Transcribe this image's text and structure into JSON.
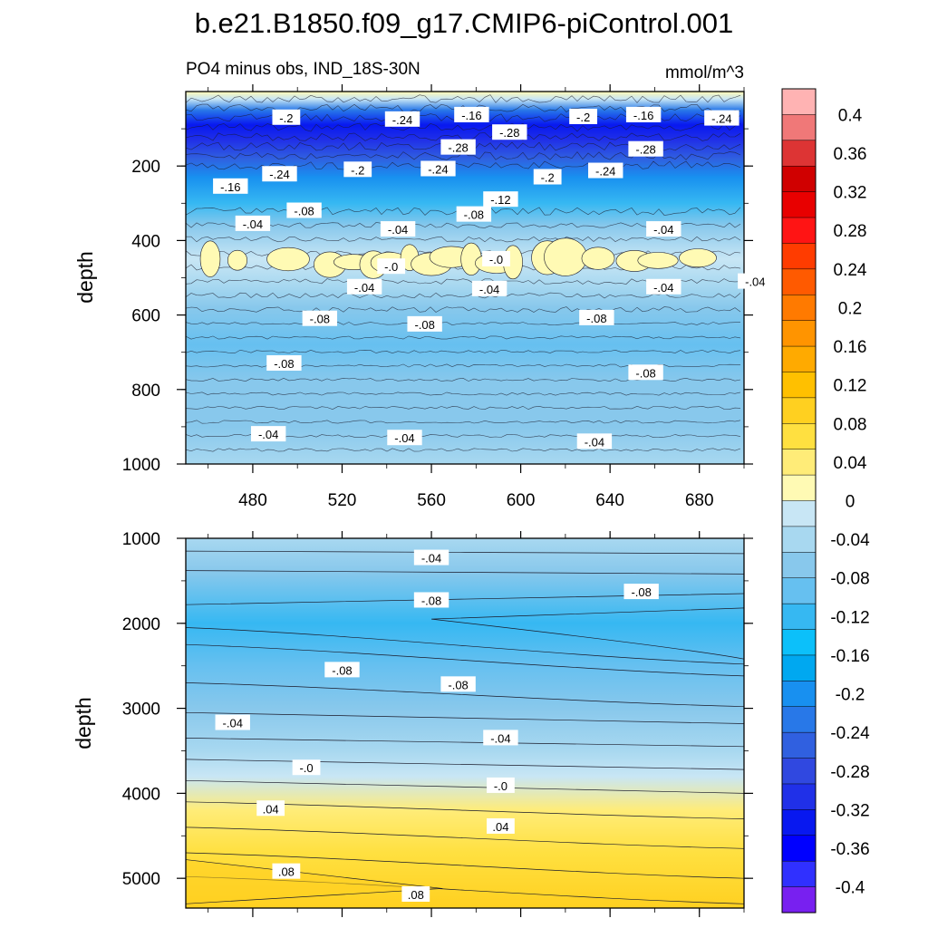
{
  "chart_data": [
    {
      "type": "heatmap",
      "title": "b.e21.B1850.f09_g17.CMIP6-piControl.001",
      "subtitle_left": "PO4 minus obs, IND_18S-30N",
      "subtitle_right": "mmol/m^3",
      "panel": "upper",
      "xlabel": "",
      "ylabel": "depth",
      "xlim": [
        450,
        700
      ],
      "ylim": [
        1000,
        0
      ],
      "x_ticks": [
        "480",
        "520",
        "560",
        "600",
        "640",
        "680"
      ],
      "y_ticks": [
        "200",
        "400",
        "600",
        "800",
        "1000"
      ],
      "depth_profile": [
        {
          "depth": 0,
          "value": 0.02
        },
        {
          "depth": 20,
          "value": 0.0
        },
        {
          "depth": 50,
          "value": -0.2
        },
        {
          "depth": 90,
          "value": -0.32
        },
        {
          "depth": 130,
          "value": -0.3
        },
        {
          "depth": 180,
          "value": -0.24
        },
        {
          "depth": 230,
          "value": -0.18
        },
        {
          "depth": 300,
          "value": -0.1
        },
        {
          "depth": 360,
          "value": -0.05
        },
        {
          "depth": 450,
          "value": 0.0
        },
        {
          "depth": 520,
          "value": -0.04
        },
        {
          "depth": 580,
          "value": -0.07
        },
        {
          "depth": 680,
          "value": -0.09
        },
        {
          "depth": 780,
          "value": -0.07
        },
        {
          "depth": 900,
          "value": -0.05
        },
        {
          "depth": 1000,
          "value": -0.04
        }
      ],
      "contour_labels": [
        {
          "text": "-.2",
          "x": 495,
          "depth": 70
        },
        {
          "text": "-.24",
          "x": 547,
          "depth": 75
        },
        {
          "text": "-.16",
          "x": 578,
          "depth": 63
        },
        {
          "text": "-.28",
          "x": 595,
          "depth": 110
        },
        {
          "text": "-.2",
          "x": 628,
          "depth": 68
        },
        {
          "text": "-.16",
          "x": 655,
          "depth": 63
        },
        {
          "text": "-.24",
          "x": 690,
          "depth": 72
        },
        {
          "text": "-.28",
          "x": 572,
          "depth": 150
        },
        {
          "text": "-.28",
          "x": 656,
          "depth": 155
        },
        {
          "text": "-.16",
          "x": 470,
          "depth": 255
        },
        {
          "text": "-.24",
          "x": 492,
          "depth": 222
        },
        {
          "text": "-.2",
          "x": 527,
          "depth": 210
        },
        {
          "text": "-.24",
          "x": 563,
          "depth": 208
        },
        {
          "text": "-.2",
          "x": 612,
          "depth": 230
        },
        {
          "text": "-.24",
          "x": 638,
          "depth": 213
        },
        {
          "text": "-.12",
          "x": 591,
          "depth": 290
        },
        {
          "text": "-.04",
          "x": 480,
          "depth": 355
        },
        {
          "text": "-.08",
          "x": 503,
          "depth": 320
        },
        {
          "text": "-.04",
          "x": 545,
          "depth": 370
        },
        {
          "text": "-.08",
          "x": 579,
          "depth": 330
        },
        {
          "text": "-.04",
          "x": 664,
          "depth": 370
        },
        {
          "text": "-.0",
          "x": 542,
          "depth": 470
        },
        {
          "text": "-.0",
          "x": 589,
          "depth": 450
        },
        {
          "text": "-.04",
          "x": 530,
          "depth": 525
        },
        {
          "text": "-.04",
          "x": 586,
          "depth": 530
        },
        {
          "text": "-.04",
          "x": 664,
          "depth": 525
        },
        {
          "text": "-.04",
          "x": 705,
          "depth": 510
        },
        {
          "text": "-.08",
          "x": 510,
          "depth": 610
        },
        {
          "text": "-.08",
          "x": 557,
          "depth": 625
        },
        {
          "text": "-.08",
          "x": 634,
          "depth": 608
        },
        {
          "text": "-.08",
          "x": 494,
          "depth": 730
        },
        {
          "text": "-.08",
          "x": 656,
          "depth": 755
        },
        {
          "text": "-.04",
          "x": 487,
          "depth": 920
        },
        {
          "text": "-.04",
          "x": 548,
          "depth": 930
        },
        {
          "text": "-.04",
          "x": 633,
          "depth": 940
        }
      ]
    },
    {
      "type": "heatmap",
      "panel": "lower",
      "xlabel": "",
      "ylabel": "depth",
      "xlim": [
        450,
        700
      ],
      "ylim": [
        5350,
        1000
      ],
      "y_ticks": [
        "1000",
        "2000",
        "3000",
        "4000",
        "5000"
      ],
      "depth_profile": [
        {
          "depth": 1000,
          "value": -0.03
        },
        {
          "depth": 1400,
          "value": -0.06
        },
        {
          "depth": 2000,
          "value": -0.1
        },
        {
          "depth": 2500,
          "value": -0.08
        },
        {
          "depth": 3000,
          "value": -0.06
        },
        {
          "depth": 3500,
          "value": -0.03
        },
        {
          "depth": 3800,
          "value": 0.0
        },
        {
          "depth": 4200,
          "value": 0.03
        },
        {
          "depth": 4700,
          "value": 0.06
        },
        {
          "depth": 5350,
          "value": 0.09
        }
      ],
      "contour_labels": [
        {
          "text": "-.04",
          "x": 560,
          "depth": 1230
        },
        {
          "text": "-.08",
          "x": 560,
          "depth": 1730
        },
        {
          "text": "-.08",
          "x": 654,
          "depth": 1630
        },
        {
          "text": "-.08",
          "x": 520,
          "depth": 2550
        },
        {
          "text": "-.08",
          "x": 572,
          "depth": 2720
        },
        {
          "text": "-.04",
          "x": 471,
          "depth": 3170
        },
        {
          "text": "-.04",
          "x": 591,
          "depth": 3350
        },
        {
          "text": "-.0",
          "x": 504,
          "depth": 3700
        },
        {
          "text": "-.0",
          "x": 591,
          "depth": 3910
        },
        {
          "text": ".04",
          "x": 488,
          "depth": 4180
        },
        {
          "text": ".04",
          "x": 591,
          "depth": 4390
        },
        {
          "text": ".08",
          "x": 495,
          "depth": 4920
        },
        {
          "text": ".08",
          "x": 553,
          "depth": 5190
        }
      ]
    }
  ],
  "colorbar": {
    "labels": [
      "0.4",
      "0.36",
      "0.32",
      "0.28",
      "0.24",
      "0.2",
      "0.16",
      "0.12",
      "0.08",
      "0.04",
      "0",
      "-0.04",
      "-0.08",
      "-0.12",
      "-0.16",
      "-0.2",
      "-0.24",
      "-0.28",
      "-0.32",
      "-0.36",
      "-0.4"
    ],
    "colors": [
      "#ffb3b3",
      "#f07878",
      "#dd3434",
      "#d00000",
      "#e80000",
      "#ff1414",
      "#ff3c00",
      "#ff5a00",
      "#ff7a00",
      "#ff9400",
      "#ffaa00",
      "#ffc000",
      "#ffd020",
      "#ffe040",
      "#ffec78",
      "#fffab4",
      "#c8e6f5",
      "#a8d8f0",
      "#88c8ec",
      "#66c0f0",
      "#36b8f2",
      "#0cc0fa",
      "#00a8f0",
      "#1890f0",
      "#2878e8",
      "#3060e0",
      "#3048e0",
      "#2030e8",
      "#0818f0",
      "#0000ff",
      "#3030ff",
      "#7820f0"
    ]
  }
}
